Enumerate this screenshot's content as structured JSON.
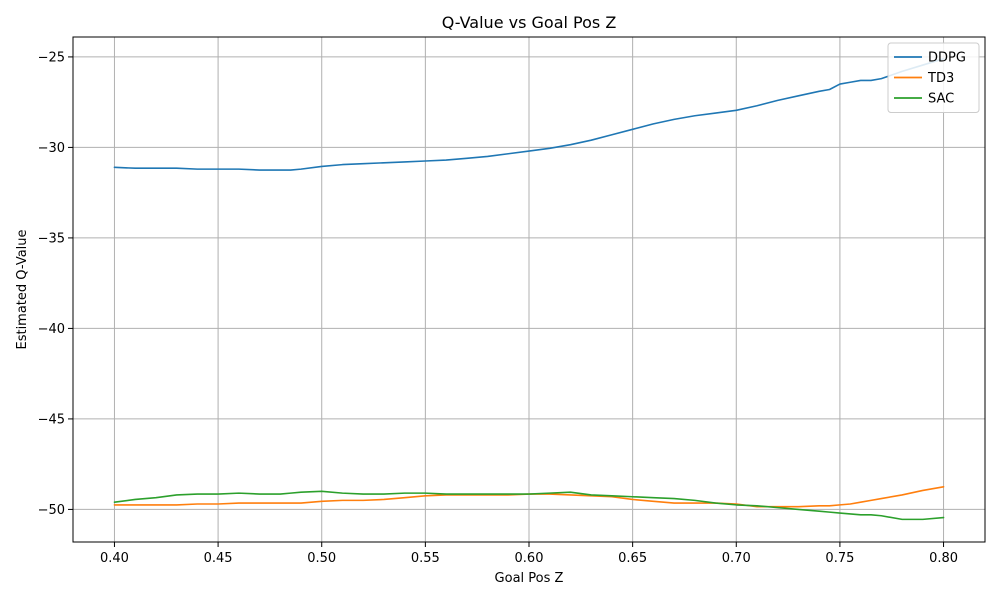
{
  "chart_data": {
    "type": "line",
    "title": "Q-Value vs Goal Pos Z",
    "xlabel": "Goal Pos Z",
    "ylabel": "Estimated Q-Value",
    "xlim": [
      0.38,
      0.82
    ],
    "ylim": [
      -51.8,
      -23.9
    ],
    "grid": true,
    "legend_position": "top-right",
    "xticks": [
      0.4,
      0.45,
      0.5,
      0.55,
      0.6,
      0.65,
      0.7,
      0.75,
      0.8
    ],
    "xtick_labels": [
      "0.40",
      "0.45",
      "0.50",
      "0.55",
      "0.60",
      "0.65",
      "0.70",
      "0.75",
      "0.80"
    ],
    "yticks": [
      -50,
      -45,
      -40,
      -35,
      -30,
      -25
    ],
    "ytick_labels": [
      "−50",
      "−45",
      "−40",
      "−35",
      "−30",
      "−25"
    ],
    "x": [
      0.4,
      0.41,
      0.42,
      0.43,
      0.44,
      0.45,
      0.46,
      0.47,
      0.475,
      0.48,
      0.485,
      0.49,
      0.5,
      0.51,
      0.52,
      0.53,
      0.54,
      0.55,
      0.56,
      0.57,
      0.58,
      0.59,
      0.6,
      0.61,
      0.62,
      0.63,
      0.64,
      0.65,
      0.66,
      0.67,
      0.68,
      0.69,
      0.7,
      0.71,
      0.72,
      0.73,
      0.74,
      0.745,
      0.75,
      0.755,
      0.76,
      0.765,
      0.77,
      0.78,
      0.79,
      0.8
    ],
    "series": [
      {
        "name": "DDPG",
        "color": "#1f77b4",
        "values": [
          -31.1,
          -31.15,
          -31.15,
          -31.15,
          -31.2,
          -31.2,
          -31.2,
          -31.25,
          -31.25,
          -31.25,
          -31.25,
          -31.2,
          -31.05,
          -30.95,
          -30.9,
          -30.85,
          -30.8,
          -30.75,
          -30.7,
          -30.6,
          -30.5,
          -30.35,
          -30.2,
          -30.05,
          -29.85,
          -29.6,
          -29.3,
          -29.0,
          -28.7,
          -28.45,
          -28.25,
          -28.1,
          -27.95,
          -27.7,
          -27.4,
          -27.15,
          -26.9,
          -26.8,
          -26.5,
          -26.4,
          -26.3,
          -26.3,
          -26.2,
          -25.8,
          -25.45,
          -25.1
        ]
      },
      {
        "name": "TD3",
        "color": "#ff7f0e",
        "values": [
          -49.75,
          -49.75,
          -49.75,
          -49.75,
          -49.7,
          -49.7,
          -49.65,
          -49.65,
          -49.65,
          -49.65,
          -49.65,
          -49.65,
          -49.55,
          -49.5,
          -49.5,
          -49.45,
          -49.35,
          -49.25,
          -49.2,
          -49.2,
          -49.2,
          -49.2,
          -49.15,
          -49.15,
          -49.2,
          -49.25,
          -49.3,
          -49.45,
          -49.55,
          -49.65,
          -49.65,
          -49.65,
          -49.7,
          -49.85,
          -49.85,
          -49.85,
          -49.8,
          -49.8,
          -49.75,
          -49.7,
          -49.6,
          -49.5,
          -49.4,
          -49.2,
          -48.95,
          -48.75
        ]
      },
      {
        "name": "SAC",
        "color": "#2ca02c",
        "values": [
          -49.6,
          -49.45,
          -49.35,
          -49.2,
          -49.15,
          -49.15,
          -49.1,
          -49.15,
          -49.15,
          -49.15,
          -49.1,
          -49.05,
          -49.0,
          -49.1,
          -49.15,
          -49.15,
          -49.1,
          -49.1,
          -49.15,
          -49.15,
          -49.15,
          -49.15,
          -49.15,
          -49.1,
          -49.05,
          -49.2,
          -49.25,
          -49.3,
          -49.35,
          -49.4,
          -49.5,
          -49.65,
          -49.75,
          -49.8,
          -49.9,
          -50.0,
          -50.1,
          -50.15,
          -50.2,
          -50.25,
          -50.3,
          -50.3,
          -50.35,
          -50.55,
          -50.55,
          -50.45
        ]
      }
    ]
  }
}
